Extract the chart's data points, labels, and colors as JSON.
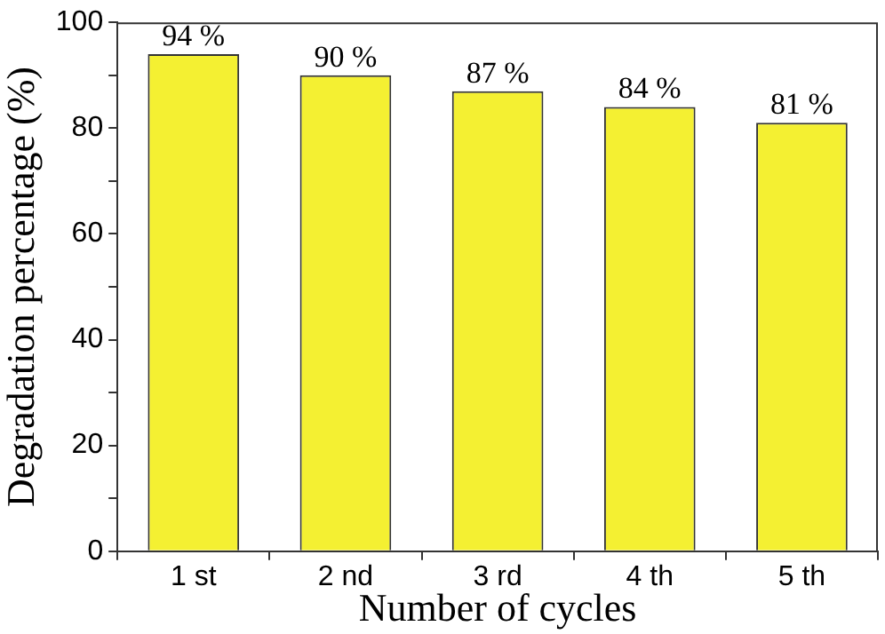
{
  "chart_data": {
    "type": "bar",
    "xlabel": "Number of cycles",
    "ylabel": "Degradation percentage (%)",
    "categories": [
      "1 st",
      "2 nd",
      "3 rd",
      "4 th",
      "5 th"
    ],
    "values": [
      94,
      90,
      87,
      84,
      81
    ],
    "value_labels": [
      "94 %",
      "90 %",
      "87 %",
      "84 %",
      "81 %"
    ],
    "color": "#f4f032",
    "ylim": [
      0,
      100
    ],
    "yticks": [
      0,
      {
        "value": 10,
        "label": null
      },
      20,
      {
        "value": 30,
        "label": null
      },
      40,
      {
        "value": 50,
        "label": null
      },
      60,
      {
        "value": 70,
        "label": null
      },
      80,
      {
        "value": 90,
        "label": null
      },
      100
    ],
    "grid": false
  }
}
